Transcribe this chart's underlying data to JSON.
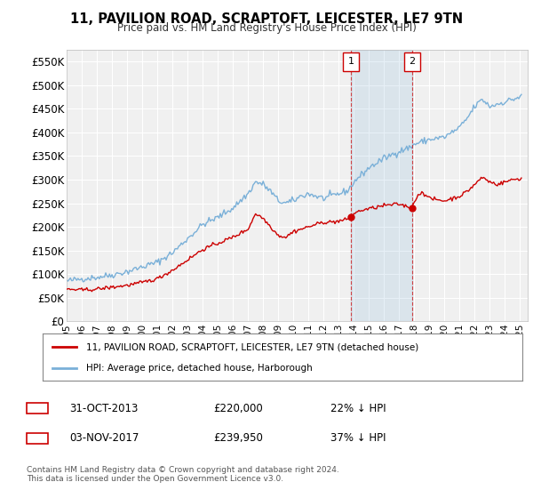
{
  "title": "11, PAVILION ROAD, SCRAPTOFT, LEICESTER, LE7 9TN",
  "subtitle": "Price paid vs. HM Land Registry's House Price Index (HPI)",
  "ylabel_ticks": [
    "£0",
    "£50K",
    "£100K",
    "£150K",
    "£200K",
    "£250K",
    "£300K",
    "£350K",
    "£400K",
    "£450K",
    "£500K",
    "£550K"
  ],
  "ytick_values": [
    0,
    50000,
    100000,
    150000,
    200000,
    250000,
    300000,
    350000,
    400000,
    450000,
    500000,
    550000
  ],
  "ylim": [
    0,
    575000
  ],
  "xlim_start": 1995.0,
  "xlim_end": 2025.5,
  "purchase1_date": 2013.83,
  "purchase1_price": 220000,
  "purchase1_label": "1",
  "purchase2_date": 2017.84,
  "purchase2_price": 239950,
  "purchase2_label": "2",
  "hpi_color": "#7ab0d8",
  "price_color": "#cc0000",
  "background_color": "#ffffff",
  "plot_bg_color": "#f0f0f0",
  "grid_color": "#ffffff",
  "legend_label_price": "11, PAVILION ROAD, SCRAPTOFT, LEICESTER, LE7 9TN (detached house)",
  "legend_label_hpi": "HPI: Average price, detached house, Harborough",
  "footer": "Contains HM Land Registry data © Crown copyright and database right 2024.\nThis data is licensed under the Open Government Licence v3.0.",
  "xtick_years": [
    1995,
    1996,
    1997,
    1998,
    1999,
    2000,
    2001,
    2002,
    2003,
    2004,
    2005,
    2006,
    2007,
    2008,
    2009,
    2010,
    2011,
    2012,
    2013,
    2014,
    2015,
    2016,
    2017,
    2018,
    2019,
    2020,
    2021,
    2022,
    2023,
    2024,
    2025
  ],
  "hpi_anchors": [
    [
      1995.0,
      85000
    ],
    [
      1996.0,
      90000
    ],
    [
      1997.0,
      93000
    ],
    [
      1998.0,
      98000
    ],
    [
      1999.0,
      105000
    ],
    [
      2000.0,
      115000
    ],
    [
      2001.0,
      125000
    ],
    [
      2002.0,
      145000
    ],
    [
      2003.0,
      175000
    ],
    [
      2004.0,
      205000
    ],
    [
      2005.0,
      220000
    ],
    [
      2006.0,
      240000
    ],
    [
      2007.0,
      270000
    ],
    [
      2007.5,
      295000
    ],
    [
      2008.0,
      290000
    ],
    [
      2008.5,
      275000
    ],
    [
      2009.0,
      255000
    ],
    [
      2009.5,
      250000
    ],
    [
      2010.0,
      255000
    ],
    [
      2010.5,
      265000
    ],
    [
      2011.0,
      270000
    ],
    [
      2011.5,
      265000
    ],
    [
      2012.0,
      260000
    ],
    [
      2012.5,
      265000
    ],
    [
      2013.0,
      270000
    ],
    [
      2013.5,
      275000
    ],
    [
      2013.83,
      285000
    ],
    [
      2014.0,
      295000
    ],
    [
      2014.5,
      310000
    ],
    [
      2015.0,
      325000
    ],
    [
      2016.0,
      345000
    ],
    [
      2017.0,
      360000
    ],
    [
      2017.84,
      370000
    ],
    [
      2018.0,
      375000
    ],
    [
      2019.0,
      385000
    ],
    [
      2020.0,
      390000
    ],
    [
      2021.0,
      410000
    ],
    [
      2021.5,
      430000
    ],
    [
      2022.0,
      455000
    ],
    [
      2022.5,
      470000
    ],
    [
      2023.0,
      455000
    ],
    [
      2023.5,
      460000
    ],
    [
      2024.0,
      465000
    ],
    [
      2024.5,
      470000
    ],
    [
      2025.0,
      475000
    ]
  ],
  "price_anchors": [
    [
      1995.0,
      68000
    ],
    [
      1996.0,
      66000
    ],
    [
      1997.0,
      68000
    ],
    [
      1998.0,
      72000
    ],
    [
      1999.0,
      76000
    ],
    [
      2000.0,
      82000
    ],
    [
      2001.0,
      90000
    ],
    [
      2002.0,
      108000
    ],
    [
      2003.0,
      130000
    ],
    [
      2004.0,
      152000
    ],
    [
      2005.0,
      165000
    ],
    [
      2006.0,
      178000
    ],
    [
      2007.0,
      195000
    ],
    [
      2007.5,
      228000
    ],
    [
      2008.0,
      218000
    ],
    [
      2008.5,
      200000
    ],
    [
      2009.0,
      182000
    ],
    [
      2009.5,
      178000
    ],
    [
      2010.0,
      190000
    ],
    [
      2010.5,
      195000
    ],
    [
      2011.0,
      200000
    ],
    [
      2011.5,
      205000
    ],
    [
      2012.0,
      210000
    ],
    [
      2012.5,
      210000
    ],
    [
      2013.0,
      212000
    ],
    [
      2013.5,
      215000
    ],
    [
      2013.83,
      220000
    ],
    [
      2014.0,
      228000
    ],
    [
      2014.5,
      235000
    ],
    [
      2015.0,
      238000
    ],
    [
      2016.0,
      245000
    ],
    [
      2017.0,
      248000
    ],
    [
      2017.84,
      239950
    ],
    [
      2018.0,
      255000
    ],
    [
      2018.5,
      275000
    ],
    [
      2019.0,
      260000
    ],
    [
      2020.0,
      255000
    ],
    [
      2021.0,
      265000
    ],
    [
      2021.5,
      275000
    ],
    [
      2022.0,
      290000
    ],
    [
      2022.5,
      305000
    ],
    [
      2023.0,
      295000
    ],
    [
      2023.5,
      290000
    ],
    [
      2024.0,
      295000
    ],
    [
      2024.5,
      300000
    ],
    [
      2025.0,
      302000
    ]
  ]
}
